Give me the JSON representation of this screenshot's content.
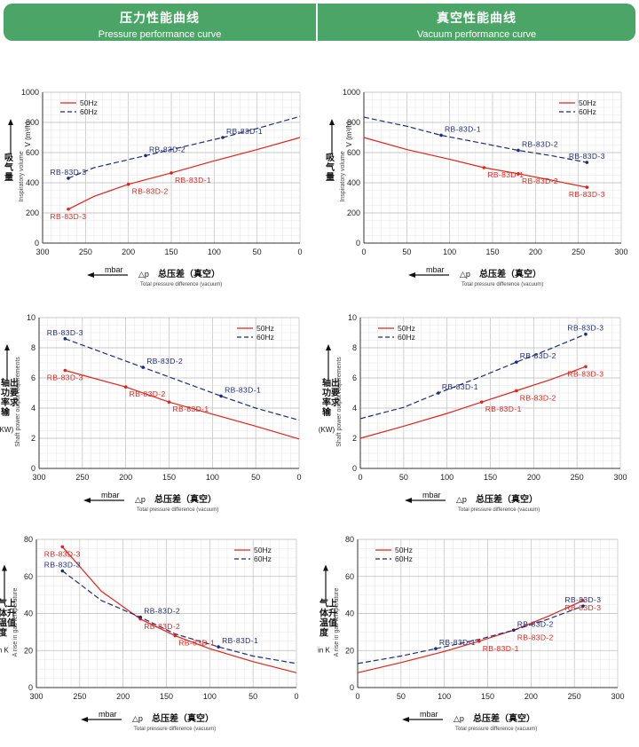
{
  "header": {
    "left_cn": "压力性能曲线",
    "left_en": "Pressure performance curve",
    "right_cn": "真空性能曲线",
    "right_en": "Vacuum performance curve"
  },
  "colors": {
    "series_50hz": "#e2231a",
    "series_60hz": "#1f2a7a",
    "banner": "#4aa566",
    "grid": "#cfcfcf"
  },
  "common": {
    "legend_50": "50Hz",
    "legend_60": "60Hz",
    "x_unit": "mbar",
    "x_title_cn": "总压差（真空）",
    "x_title_en": "Total pressure difference (vacuum)",
    "x_delta": "△p"
  },
  "chart_data": [
    {
      "id": "flow-pressure",
      "type": "line",
      "row": 0,
      "col": 0,
      "xlim": [
        300,
        0
      ],
      "ylim": [
        0,
        1000
      ],
      "xticks": [
        300,
        250,
        200,
        150,
        100,
        50,
        0
      ],
      "yticks": [
        0,
        200,
        400,
        600,
        800,
        1000
      ],
      "ylabel_cn": "吸气量",
      "ylabel_en": "Inspiratory volume",
      "ylabel_unit": "V (m³/h)",
      "legend_pos": "top-left",
      "series": [
        {
          "name": "50Hz",
          "points": [
            [
              270,
              225
            ],
            [
              240,
              310
            ],
            [
              200,
              390
            ],
            [
              150,
              465
            ],
            [
              100,
              545
            ],
            [
              50,
              620
            ],
            [
              0,
              700
            ]
          ]
        },
        {
          "name": "60Hz",
          "points": [
            [
              270,
              430
            ],
            [
              240,
              500
            ],
            [
              180,
              580
            ],
            [
              150,
              620
            ],
            [
              90,
              700
            ],
            [
              50,
              760
            ],
            [
              0,
              840
            ]
          ]
        }
      ],
      "labels": [
        {
          "text": "RB-83D-3",
          "series": 0,
          "x": 270,
          "y": 225
        },
        {
          "text": "RB-83D-2",
          "series": 0,
          "x": 200,
          "y": 390
        },
        {
          "text": "RB-83D-1",
          "series": 0,
          "x": 150,
          "y": 465
        },
        {
          "text": "RB-83D-3",
          "series": 1,
          "x": 270,
          "y": 430
        },
        {
          "text": "RB-83D-2",
          "series": 1,
          "x": 180,
          "y": 580
        },
        {
          "text": "RB-83D-1",
          "series": 1,
          "x": 90,
          "y": 700
        }
      ]
    },
    {
      "id": "flow-vacuum",
      "type": "line",
      "row": 0,
      "col": 1,
      "xlim": [
        0,
        300
      ],
      "ylim": [
        0,
        1000
      ],
      "xticks": [
        0,
        50,
        100,
        150,
        200,
        250,
        300
      ],
      "yticks": [
        0,
        200,
        400,
        600,
        800,
        1000
      ],
      "ylabel_cn": "吸气量",
      "ylabel_en": "Inspiratory volume",
      "ylabel_unit": "V (m³/h)",
      "legend_pos": "top-right",
      "series": [
        {
          "name": "50Hz",
          "points": [
            [
              0,
              700
            ],
            [
              50,
              620
            ],
            [
              100,
              555
            ],
            [
              140,
              500
            ],
            [
              180,
              460
            ],
            [
              220,
              415
            ],
            [
              260,
              370
            ]
          ]
        },
        {
          "name": "60Hz",
          "points": [
            [
              0,
              835
            ],
            [
              50,
              775
            ],
            [
              90,
              715
            ],
            [
              140,
              660
            ],
            [
              180,
              615
            ],
            [
              220,
              578
            ],
            [
              260,
              535
            ]
          ]
        }
      ],
      "labels": [
        {
          "text": "RB-83D-1",
          "series": 0,
          "x": 140,
          "y": 500
        },
        {
          "text": "RB-83D-2",
          "series": 0,
          "x": 180,
          "y": 460
        },
        {
          "text": "RB-83D-3",
          "series": 0,
          "x": 260,
          "y": 370
        },
        {
          "text": "RB-83D-1",
          "series": 1,
          "x": 90,
          "y": 715
        },
        {
          "text": "RB-83D-2",
          "series": 1,
          "x": 180,
          "y": 615
        },
        {
          "text": "RB-83D-3",
          "series": 1,
          "x": 260,
          "y": 535
        }
      ]
    },
    {
      "id": "power-pressure",
      "type": "line",
      "row": 1,
      "col": 0,
      "xlim": [
        300,
        0
      ],
      "ylim": [
        0,
        10
      ],
      "xticks": [
        300,
        250,
        200,
        150,
        100,
        50,
        0
      ],
      "yticks": [
        0,
        2,
        4,
        6,
        8,
        10
      ],
      "ylabel_cn": "轴功率输出要求",
      "ylabel_en": "Shaft power output requirements",
      "ylabel_unit": "(KW)",
      "legend_pos": "top-right",
      "series": [
        {
          "name": "50Hz",
          "points": [
            [
              270,
              6.5
            ],
            [
              200,
              5.4
            ],
            [
              150,
              4.4
            ],
            [
              100,
              3.6
            ],
            [
              50,
              2.8
            ],
            [
              0,
              1.95
            ]
          ]
        },
        {
          "name": "60Hz",
          "points": [
            [
              270,
              8.6
            ],
            [
              180,
              6.7
            ],
            [
              90,
              4.8
            ],
            [
              50,
              4.0
            ],
            [
              0,
              3.2
            ]
          ]
        }
      ],
      "labels": [
        {
          "text": "RB-83D-3",
          "series": 0,
          "x": 270,
          "y": 6.5
        },
        {
          "text": "RB-83D-2",
          "series": 0,
          "x": 200,
          "y": 5.4
        },
        {
          "text": "RB-83D-1",
          "series": 0,
          "x": 150,
          "y": 4.4
        },
        {
          "text": "RB-83D-3",
          "series": 1,
          "x": 270,
          "y": 8.6
        },
        {
          "text": "RB-83D-2",
          "series": 1,
          "x": 180,
          "y": 6.7
        },
        {
          "text": "RB-83D-1",
          "series": 1,
          "x": 90,
          "y": 4.8
        }
      ]
    },
    {
      "id": "power-vacuum",
      "type": "line",
      "row": 1,
      "col": 1,
      "xlim": [
        0,
        300
      ],
      "ylim": [
        0,
        10
      ],
      "xticks": [
        0,
        50,
        100,
        150,
        200,
        250,
        300
      ],
      "yticks": [
        0,
        2,
        4,
        6,
        8,
        10
      ],
      "ylabel_cn": "轴功率输出要求",
      "ylabel_en": "Shaft power output requirements",
      "ylabel_unit": "(KW)",
      "legend_pos": "top-left",
      "series": [
        {
          "name": "50Hz",
          "points": [
            [
              0,
              2.0
            ],
            [
              50,
              2.8
            ],
            [
              100,
              3.65
            ],
            [
              140,
              4.4
            ],
            [
              180,
              5.15
            ],
            [
              220,
              5.9
            ],
            [
              260,
              6.75
            ]
          ]
        },
        {
          "name": "60Hz",
          "points": [
            [
              0,
              3.3
            ],
            [
              50,
              4.05
            ],
            [
              90,
              5.0
            ],
            [
              140,
              6.1
            ],
            [
              180,
              7.05
            ],
            [
              220,
              7.95
            ],
            [
              260,
              8.9
            ]
          ]
        }
      ],
      "labels": [
        {
          "text": "RB-83D-1",
          "series": 0,
          "x": 140,
          "y": 4.4
        },
        {
          "text": "RB-83D-2",
          "series": 0,
          "x": 180,
          "y": 5.15
        },
        {
          "text": "RB-83D-3",
          "series": 0,
          "x": 260,
          "y": 6.75
        },
        {
          "text": "RB-83D-1",
          "series": 1,
          "x": 90,
          "y": 5.0
        },
        {
          "text": "RB-83D-2",
          "series": 1,
          "x": 180,
          "y": 7.05
        },
        {
          "text": "RB-83D-3",
          "series": 1,
          "x": 260,
          "y": 8.9
        }
      ]
    },
    {
      "id": "temp-pressure",
      "type": "line",
      "row": 2,
      "col": 0,
      "xlim": [
        300,
        0
      ],
      "ylim": [
        0,
        80
      ],
      "xticks": [
        300,
        250,
        200,
        150,
        100,
        50,
        0
      ],
      "yticks": [
        0,
        20,
        40,
        60,
        80
      ],
      "ylabel_cn": "气体温度上升值",
      "ylabel_en": "A rise in gas temperature",
      "ylabel_unit": "in K",
      "legend_pos": "top-right",
      "series": [
        {
          "name": "50Hz",
          "points": [
            [
              270,
              76
            ],
            [
              225,
              52
            ],
            [
              180,
              37
            ],
            [
              140,
              28
            ],
            [
              100,
              21
            ],
            [
              50,
              14
            ],
            [
              0,
              8
            ]
          ]
        },
        {
          "name": "60Hz",
          "points": [
            [
              270,
              63
            ],
            [
              225,
              47
            ],
            [
              180,
              38
            ],
            [
              140,
              29
            ],
            [
              90,
              22
            ],
            [
              50,
              17
            ],
            [
              0,
              13
            ]
          ]
        }
      ],
      "labels": [
        {
          "text": "RB-83D-3",
          "series": 0,
          "x": 270,
          "y": 76
        },
        {
          "text": "RB-83D-2",
          "series": 0,
          "x": 180,
          "y": 37
        },
        {
          "text": "RB-83D-1",
          "series": 0,
          "x": 140,
          "y": 28
        },
        {
          "text": "RB-83D-3",
          "series": 1,
          "x": 270,
          "y": 63
        },
        {
          "text": "RB-83D-2",
          "series": 1,
          "x": 180,
          "y": 38
        },
        {
          "text": "RB-83D-1",
          "series": 1,
          "x": 90,
          "y": 22
        }
      ]
    },
    {
      "id": "temp-vacuum",
      "type": "line",
      "row": 2,
      "col": 1,
      "xlim": [
        0,
        300
      ],
      "ylim": [
        0,
        80
      ],
      "xticks": [
        0,
        50,
        100,
        150,
        200,
        250,
        300
      ],
      "yticks": [
        0,
        20,
        40,
        60,
        80
      ],
      "ylabel_cn": "气体温度上升值",
      "ylabel_en": "A rise in gas temperature",
      "ylabel_unit": "in K",
      "legend_pos": "top-left",
      "series": [
        {
          "name": "50Hz",
          "points": [
            [
              0,
              8
            ],
            [
              50,
              13.5
            ],
            [
              100,
              19.5
            ],
            [
              140,
              25
            ],
            [
              180,
              31
            ],
            [
              220,
              38.5
            ],
            [
              260,
              47
            ]
          ]
        },
        {
          "name": "60Hz",
          "points": [
            [
              0,
              13
            ],
            [
              50,
              17
            ],
            [
              90,
              21
            ],
            [
              140,
              26
            ],
            [
              180,
              31
            ],
            [
              220,
              37
            ],
            [
              260,
              44
            ]
          ]
        }
      ],
      "labels": [
        {
          "text": "RB-83D-1",
          "series": 0,
          "x": 140,
          "y": 25
        },
        {
          "text": "RB-83D-2",
          "series": 0,
          "x": 180,
          "y": 31
        },
        {
          "text": "RB-83D-3",
          "series": 0,
          "x": 260,
          "y": 47
        },
        {
          "text": "RB-83D-1",
          "series": 1,
          "x": 90,
          "y": 21
        },
        {
          "text": "RB-83D-2",
          "series": 1,
          "x": 180,
          "y": 31
        },
        {
          "text": "RB-83D-3",
          "series": 1,
          "x": 260,
          "y": 44
        }
      ]
    }
  ]
}
